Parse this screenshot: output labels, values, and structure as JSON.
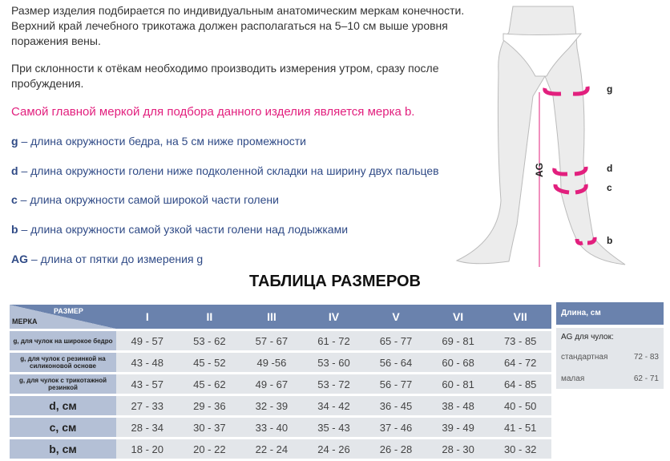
{
  "intro": {
    "p1": "Размер изделия подбирается по индивидуальным анатомическим меркам конечности. Верхний край лечебного трикотажа должен располагаться на 5–10 см выше уровня поражения вены.",
    "p2": "При склонности к отёкам необходимо производить измерения утром, сразу после пробуждения.",
    "highlight": "Самой главной меркой для подбора данного изделия является мерка b."
  },
  "definitions": [
    {
      "key": "g",
      "text": " – длина окружности бедра, на 5 см ниже промежности"
    },
    {
      "key": "d",
      "text": " – длина окружности голени ниже подколенной складки на ширину двух пальцев"
    },
    {
      "key": "c",
      "text": " – длина окружности самой широкой части голени"
    },
    {
      "key": "b",
      "text": " – длина окружности самой узкой части голени над лодыжками"
    },
    {
      "key": "AG",
      "text": " – длина от пятки до измерения g"
    }
  ],
  "diagram": {
    "labels": {
      "g": "g",
      "d": "d",
      "c": "c",
      "b": "b",
      "ag": "AG"
    },
    "accent": "#e2207e"
  },
  "table": {
    "title": "ТАБЛИЦА РАЗМЕРОВ",
    "corner_row": "МЕРКА",
    "corner_col": "РАЗМЕР",
    "sizes": [
      "I",
      "II",
      "III",
      "IV",
      "V",
      "VI",
      "VII"
    ],
    "rows": [
      {
        "label": "g, для чулок на широкое бедро",
        "values": [
          "49 - 57",
          "53 - 62",
          "57 - 67",
          "61 - 72",
          "65 - 77",
          "69 - 81",
          "73 - 85"
        ]
      },
      {
        "label": "g, для чулок с  резинкой на силиконовой основе",
        "values": [
          "43 - 48",
          "45 - 52",
          "49 -56",
          "53 - 60",
          "56 - 64",
          "60 - 68",
          "64 - 72"
        ]
      },
      {
        "label": "g, для чулок с трикотажной резинкой",
        "values": [
          "43 - 57",
          "45 - 62",
          "49 - 67",
          "53 - 72",
          "56 - 77",
          "60 - 81",
          "64 - 85"
        ]
      },
      {
        "label": "d, см",
        "values": [
          "27 - 33",
          "29 - 36",
          "32 - 39",
          "34 - 42",
          "36 - 45",
          "38 - 48",
          "40 - 50"
        ]
      },
      {
        "label": "c, см",
        "values": [
          "28 - 34",
          "30 - 37",
          "33 - 40",
          "35 - 43",
          "37 - 46",
          "39 - 49",
          "41 - 51"
        ]
      },
      {
        "label": "b, см",
        "values": [
          "18 - 20",
          "20 - 22",
          "22 - 24",
          "24 - 26",
          "26 - 28",
          "28 - 30",
          "30 - 32"
        ]
      }
    ],
    "header_color": "#6a82ad",
    "label_color": "#b4c0d6",
    "cell_color": "#e3e6ea"
  },
  "length": {
    "header": "Длина, см",
    "subtitle": "AG для чулок:",
    "rows": [
      {
        "label": "стандартная",
        "value": "72 - 83"
      },
      {
        "label": "малая",
        "value": "62 - 71"
      }
    ]
  }
}
